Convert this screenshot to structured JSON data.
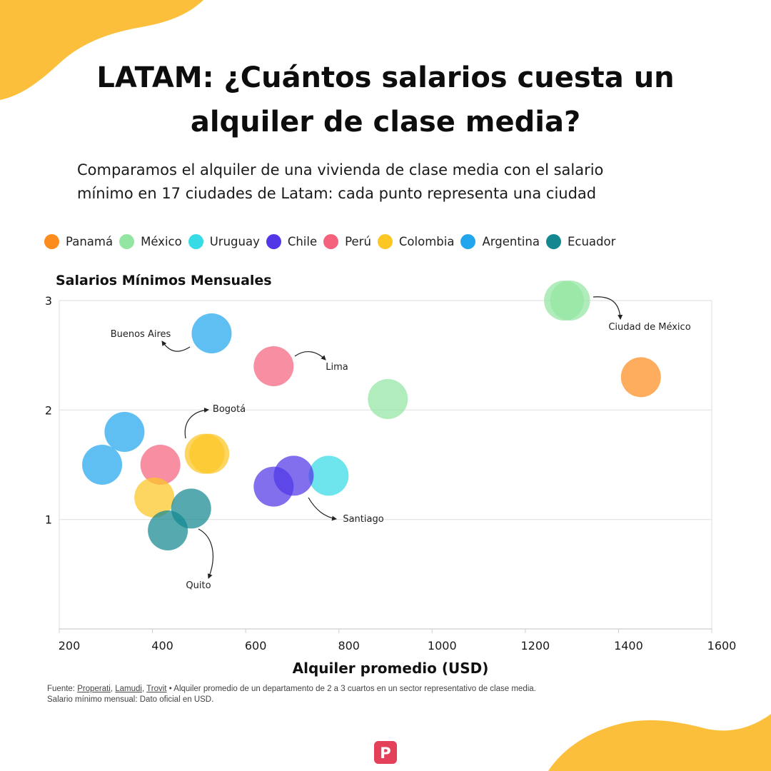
{
  "header": {
    "title_line1": "LATAM: ¿Cuántos salarios cuesta un",
    "title_line2": "alquiler de clase media?",
    "subtitle_line1": "Comparamos el alquiler de una vivienda de clase media con el salario",
    "subtitle_line2": "mínimo en 17 ciudades de Latam: cada punto representa una ciudad"
  },
  "legend": [
    {
      "name": "Panamá",
      "color": "#fd8c1f"
    },
    {
      "name": "México",
      "color": "#93e6a2"
    },
    {
      "name": "Uruguay",
      "color": "#36dbe6"
    },
    {
      "name": "Chile",
      "color": "#5137e8"
    },
    {
      "name": "Perú",
      "color": "#f5627e"
    },
    {
      "name": "Colombia",
      "color": "#fcc625"
    },
    {
      "name": "Argentina",
      "color": "#21a6ee"
    },
    {
      "name": "Ecuador",
      "color": "#138890"
    }
  ],
  "chart_data": {
    "type": "scatter",
    "title": "",
    "xlabel": "Alquiler promedio (USD)",
    "ylabel": "Salarios Mínimos Mensuales",
    "xlim": [
      200,
      1600
    ],
    "ylim": [
      0,
      3
    ],
    "xticks": [
      200,
      400,
      600,
      800,
      1000,
      1200,
      1400,
      1600
    ],
    "yticks": [
      1,
      2,
      3
    ],
    "grid": "horizontal",
    "legend_position": "top",
    "series": [
      {
        "name": "Panamá",
        "points": [
          {
            "x": 1448,
            "y": 2.3
          }
        ]
      },
      {
        "name": "México",
        "points": [
          {
            "x": 1283,
            "y": 3.0
          },
          {
            "x": 1296,
            "y": 3.0
          },
          {
            "x": 905,
            "y": 2.1
          }
        ]
      },
      {
        "name": "Uruguay",
        "points": [
          {
            "x": 778,
            "y": 1.4
          }
        ]
      },
      {
        "name": "Chile",
        "points": [
          {
            "x": 660,
            "y": 1.3
          },
          {
            "x": 703,
            "y": 1.4
          }
        ]
      },
      {
        "name": "Perú",
        "points": [
          {
            "x": 660,
            "y": 2.4
          },
          {
            "x": 417,
            "y": 1.5
          }
        ]
      },
      {
        "name": "Colombia",
        "points": [
          {
            "x": 512,
            "y": 1.6
          },
          {
            "x": 522,
            "y": 1.6
          },
          {
            "x": 404,
            "y": 1.2
          }
        ]
      },
      {
        "name": "Argentina",
        "points": [
          {
            "x": 527,
            "y": 2.7
          },
          {
            "x": 340,
            "y": 1.8
          },
          {
            "x": 292,
            "y": 1.5
          }
        ]
      },
      {
        "name": "Ecuador",
        "points": [
          {
            "x": 483,
            "y": 1.1
          },
          {
            "x": 433,
            "y": 0.9
          }
        ]
      }
    ],
    "annotations": [
      {
        "text": "Ciudad de México"
      },
      {
        "text": "Buenos Aires"
      },
      {
        "text": "Lima"
      },
      {
        "text": "Bogotá"
      },
      {
        "text": "Santiago"
      },
      {
        "text": "Quito"
      }
    ]
  },
  "source": {
    "label": "Fuente: ",
    "sources": [
      "Properati",
      "Lamudi",
      "Trovit"
    ],
    "note_line1": " • Alquiler promedio de un departamento de 2 a 3 cuartos en un sector representativo de clase media.",
    "note_line2": "Salario mínimo mensual: Dato oficial en USD."
  },
  "logo": {
    "letter": "P"
  }
}
